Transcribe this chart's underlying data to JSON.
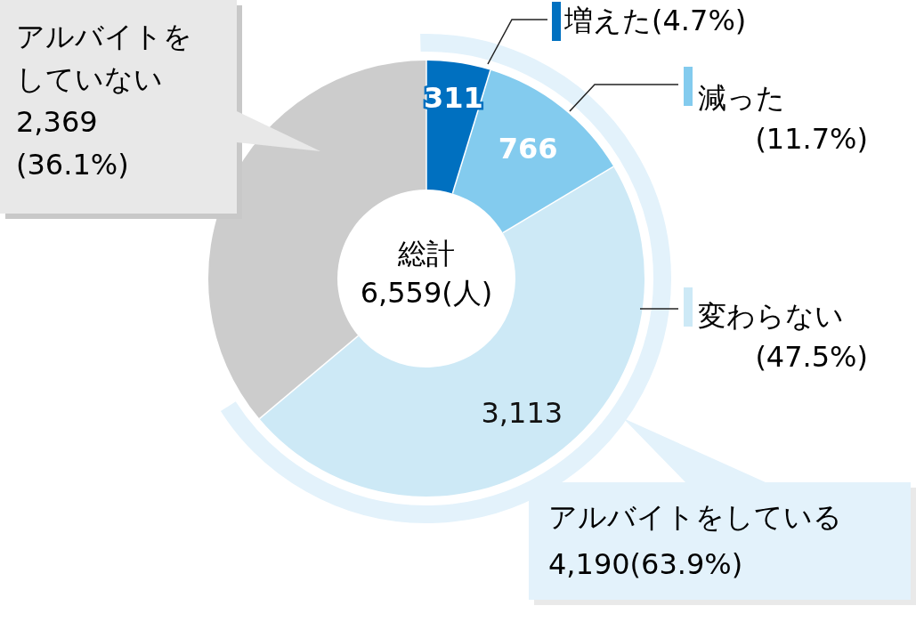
{
  "chart_data": {
    "type": "donut",
    "categories": [
      "増えた(4.7%)",
      "減った(11.7%)",
      "変わらない(47.5%)",
      "アルバイトをしていない"
    ],
    "values": [
      311,
      766,
      3113,
      2369
    ],
    "colors": [
      "#0070c0",
      "#83cbee",
      "#cde9f6",
      "#cccccc"
    ],
    "legend": "right",
    "value_labels": [
      "311",
      "766",
      "3,113",
      "2,369 (36.1%)"
    ],
    "annotations": [
      "総計 6,559(人)",
      "アルバイトをしている 4,190(63.9%)"
    ]
  }
}
